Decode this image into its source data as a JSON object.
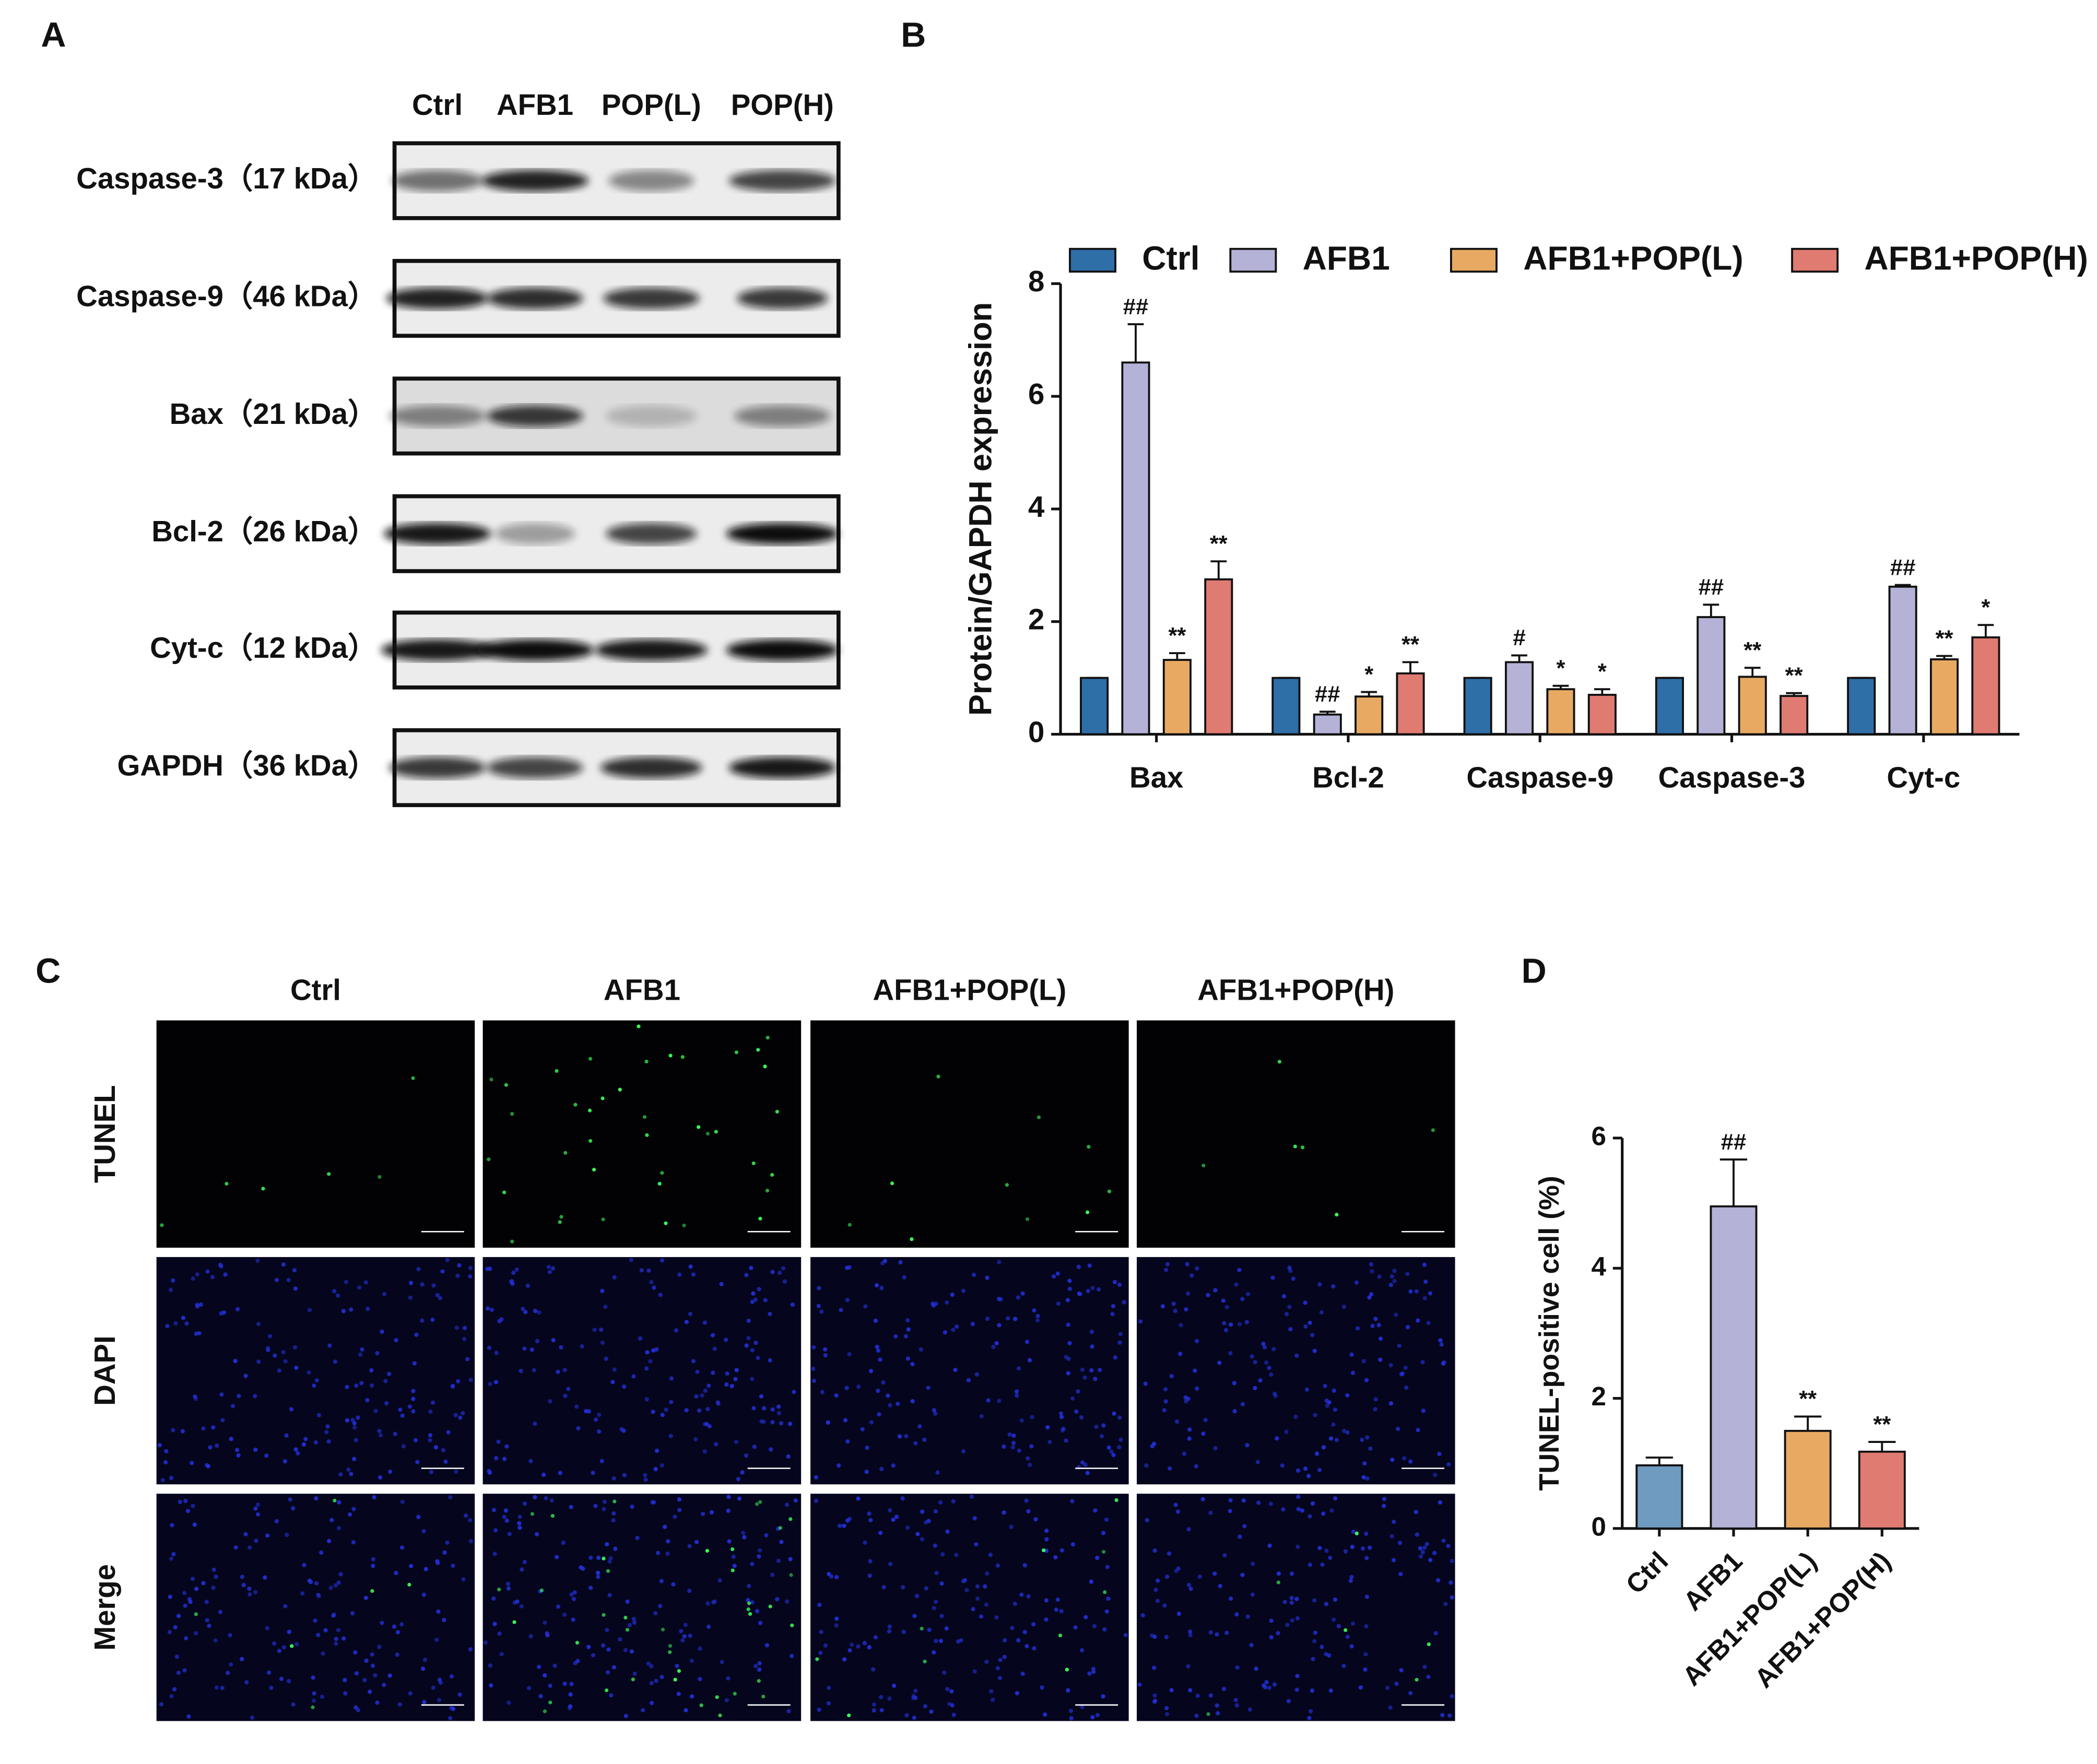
{
  "western_blot": {
    "panel_label": "A",
    "lanes": [
      "Ctrl",
      "AFB1",
      "POP(L)",
      "POP(H)"
    ],
    "proteins": [
      "Caspase-3（17 kDa）",
      "Caspase-9（46 kDa）",
      "Bax（21 kDa）",
      "Bcl-2（26 kDa）",
      "Cyt-c（12 kDa）",
      "GAPDH（36 kDa）"
    ]
  },
  "tunel_staining": {
    "panel_label": "C",
    "columns": [
      "Ctrl",
      "AFB1",
      "AFB1+POP(L)",
      "AFB1+POP(H)"
    ],
    "rows": [
      "TUNEL",
      "DAPI",
      "Merge"
    ]
  },
  "chart_data": [
    {
      "type": "bar",
      "panel_label": "B",
      "y_label": "Protein/GAPDH expression",
      "categories": [
        "Bax",
        "Bcl-2",
        "Caspase-9",
        "Caspase-3",
        "Cyt-c"
      ],
      "series": [
        {
          "name": "Ctrl",
          "color": "#2f6fa8",
          "values": [
            1,
            1,
            1,
            1,
            1
          ],
          "errors": [
            0,
            0,
            0,
            0,
            0
          ]
        },
        {
          "name": "AFB1",
          "color": "#b4b2d6",
          "values": [
            6.6,
            0.35,
            1.28,
            2.08,
            2.62
          ],
          "errors": [
            0.68,
            0.05,
            0.12,
            0.22,
            0.03
          ],
          "annotations": [
            "##",
            "##",
            "#",
            "##",
            "##"
          ]
        },
        {
          "name": "AFB1+POP(L)",
          "color": "#e8aa62",
          "values": [
            1.32,
            0.67,
            0.8,
            1.02,
            1.33
          ],
          "errors": [
            0.12,
            0.08,
            0.06,
            0.16,
            0.06
          ],
          "annotations": [
            "**",
            "*",
            "*",
            "**",
            "**"
          ]
        },
        {
          "name": "AFB1+POP(H)",
          "color": "#e07b72",
          "values": [
            2.75,
            1.08,
            0.7,
            0.68,
            1.72
          ],
          "errors": [
            0.32,
            0.2,
            0.1,
            0.05,
            0.22
          ],
          "annotations": [
            "**",
            "**",
            "*",
            "**",
            "*"
          ]
        }
      ],
      "ylim": [
        0,
        8
      ],
      "yticks": [
        0,
        2,
        4,
        6,
        8
      ],
      "legend": "top"
    },
    {
      "type": "bar",
      "panel_label": "D",
      "y_label": "TUNEL-positive  cell  (%)",
      "categories": [
        "Ctrl",
        "AFB1",
        "AFB1+POP(L)",
        "AFB1+POP(H)"
      ],
      "values": [
        0.97,
        4.95,
        1.5,
        1.18
      ],
      "errors": [
        0.12,
        0.72,
        0.22,
        0.15
      ],
      "colors": [
        "#6f9bc0",
        "#b4b2d6",
        "#e8aa62",
        "#e07b72"
      ],
      "annotations": [
        null,
        "##",
        "**",
        "**"
      ],
      "ylim": [
        0,
        6
      ],
      "yticks": [
        0,
        2,
        4,
        6
      ]
    }
  ]
}
